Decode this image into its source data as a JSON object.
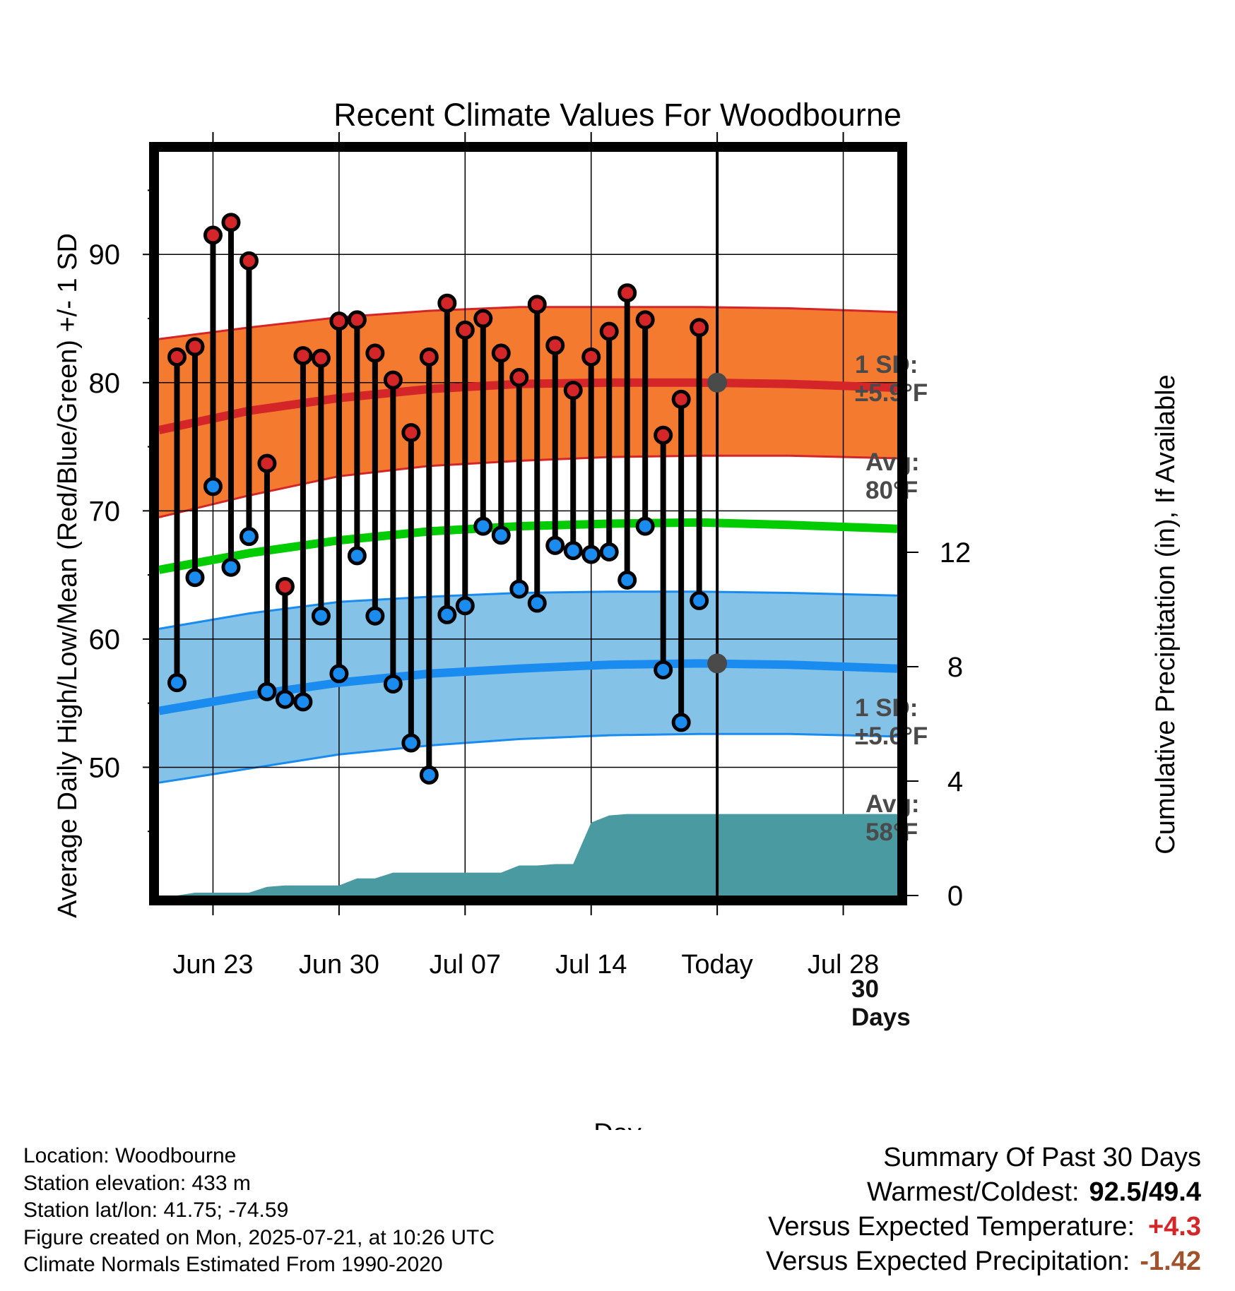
{
  "chart_data": {
    "type": "line",
    "title": "Recent Climate Values For Woodbourne",
    "xlabel": "Day",
    "ylabel": "Average Daily High/Low/Mean (Red/Blue/Green) +/- 1 SD",
    "y2label": "Cumulative Precipitation (in), If Available",
    "xlim": [
      "2025-06-20",
      "2025-07-31"
    ],
    "ylim": [
      40,
      98
    ],
    "y2lim": [
      0,
      26
    ],
    "x_ticks": [
      {
        "date": "2025-06-23",
        "label": "Jun 23"
      },
      {
        "date": "2025-06-30",
        "label": "Jun 30"
      },
      {
        "date": "2025-07-07",
        "label": "Jul 07"
      },
      {
        "date": "2025-07-14",
        "label": "Jul 14"
      },
      {
        "date": "2025-07-21",
        "label": "Today"
      },
      {
        "date": "2025-07-28",
        "label": "Jul 28"
      }
    ],
    "y_ticks": [
      50,
      60,
      70,
      80,
      90
    ],
    "y2_ticks": [
      0,
      4,
      8,
      12
    ],
    "grid": true,
    "today": "2025-07-21",
    "normals": {
      "dates": [
        "2025-06-20",
        "2025-06-25",
        "2025-06-30",
        "2025-07-05",
        "2025-07-10",
        "2025-07-15",
        "2025-07-20",
        "2025-07-25",
        "2025-07-31"
      ],
      "high_mean": [
        76.3,
        77.8,
        78.8,
        79.5,
        79.9,
        80.0,
        80.0,
        79.9,
        79.6
      ],
      "high_upper": [
        83.4,
        84.3,
        85.1,
        85.6,
        85.9,
        85.9,
        85.9,
        85.8,
        85.5
      ],
      "high_lower": [
        69.5,
        71.2,
        72.7,
        73.5,
        73.9,
        74.2,
        74.3,
        74.3,
        74.1
      ],
      "low_mean": [
        54.4,
        55.6,
        56.6,
        57.3,
        57.7,
        58.0,
        58.1,
        58.0,
        57.7
      ],
      "low_upper": [
        60.8,
        62.0,
        62.9,
        63.3,
        63.6,
        63.7,
        63.7,
        63.6,
        63.4
      ],
      "low_lower": [
        48.8,
        49.9,
        51.0,
        51.7,
        52.2,
        52.5,
        52.6,
        52.6,
        52.4
      ],
      "mean": [
        65.4,
        66.7,
        67.7,
        68.4,
        68.8,
        69.0,
        69.1,
        68.9,
        68.6
      ]
    },
    "daily": {
      "dates": [
        "2025-06-21",
        "2025-06-22",
        "2025-06-23",
        "2025-06-24",
        "2025-06-25",
        "2025-06-26",
        "2025-06-27",
        "2025-06-28",
        "2025-06-29",
        "2025-06-30",
        "2025-07-01",
        "2025-07-02",
        "2025-07-03",
        "2025-07-04",
        "2025-07-05",
        "2025-07-06",
        "2025-07-07",
        "2025-07-08",
        "2025-07-09",
        "2025-07-10",
        "2025-07-11",
        "2025-07-12",
        "2025-07-13",
        "2025-07-14",
        "2025-07-15",
        "2025-07-16",
        "2025-07-17",
        "2025-07-18",
        "2025-07-19",
        "2025-07-20"
      ],
      "high": [
        82.0,
        82.8,
        91.5,
        92.5,
        89.5,
        73.7,
        64.1,
        82.1,
        81.9,
        84.8,
        84.9,
        82.3,
        80.2,
        76.1,
        82.0,
        86.2,
        84.1,
        85.0,
        82.3,
        80.4,
        86.1,
        82.9,
        79.4,
        82.0,
        84.0,
        87.0,
        84.9,
        75.9,
        78.7,
        84.3
      ],
      "low": [
        56.6,
        64.8,
        71.9,
        65.6,
        68.0,
        55.9,
        55.3,
        55.1,
        61.8,
        57.3,
        66.5,
        61.8,
        56.5,
        51.9,
        49.4,
        61.9,
        62.6,
        68.8,
        68.1,
        63.9,
        62.8,
        67.3,
        66.9,
        66.6,
        66.8,
        64.6,
        68.8,
        57.6,
        53.5,
        63.0
      ]
    },
    "precipitation": {
      "dates": [
        "2025-06-21",
        "2025-06-22",
        "2025-06-23",
        "2025-06-24",
        "2025-06-25",
        "2025-06-26",
        "2025-06-27",
        "2025-06-28",
        "2025-06-29",
        "2025-06-30",
        "2025-07-01",
        "2025-07-02",
        "2025-07-03",
        "2025-07-04",
        "2025-07-05",
        "2025-07-06",
        "2025-07-07",
        "2025-07-08",
        "2025-07-09",
        "2025-07-10",
        "2025-07-11",
        "2025-07-12",
        "2025-07-13",
        "2025-07-14",
        "2025-07-15",
        "2025-07-16",
        "2025-07-17",
        "2025-07-18",
        "2025-07-19",
        "2025-07-20",
        "2025-07-31"
      ],
      "cumulative": [
        0.0,
        0.1,
        0.1,
        0.1,
        0.1,
        0.3,
        0.35,
        0.35,
        0.35,
        0.35,
        0.6,
        0.6,
        0.8,
        0.8,
        0.8,
        0.8,
        0.8,
        0.8,
        0.8,
        1.05,
        1.05,
        1.1,
        1.1,
        2.55,
        2.8,
        2.85,
        2.85,
        2.85,
        2.85,
        2.85,
        2.85
      ]
    },
    "annotations": {
      "high_sd": [
        "1 SD:",
        "±5.9°F"
      ],
      "high_avg": [
        "Avg:",
        "80°F"
      ],
      "low_sd": [
        "1 SD:",
        "±5.6°F"
      ],
      "low_avg": [
        "Avg:",
        "58°F"
      ],
      "period": [
        "30",
        "Days"
      ]
    },
    "colors": {
      "high_band": "#f47a30",
      "high_line": "#d42528",
      "low_band": "#85c2e8",
      "low_line": "#1a8cf0",
      "mean_line": "#00cc00",
      "precip": "#4a9aa2",
      "high_dot": "#d42528",
      "low_dot": "#1a8cf0",
      "annotation": "#4a4a4a"
    }
  },
  "info": {
    "location": "Location: Woodbourne",
    "elevation": "Station elevation: 433 m",
    "latlon": "Station lat/lon: 41.75; -74.59",
    "created": "Figure created on Mon, 2025-07-21, at 10:26 UTC",
    "normals": "Climate Normals Estimated From 1990-2020"
  },
  "summary": {
    "title": "Summary Of Past 30 Days",
    "extremes_label": "Warmest/Coldest:",
    "extremes_value": "92.5/49.4",
    "temp_label": "Versus Expected Temperature:",
    "temp_value": "+4.3",
    "temp_color": "#d42528",
    "precip_label": "Versus Expected Precipitation:",
    "precip_value": "-1.42",
    "precip_color": "#a0522d"
  }
}
